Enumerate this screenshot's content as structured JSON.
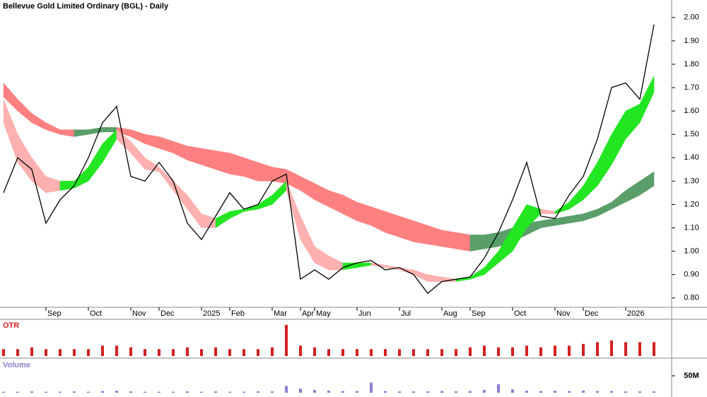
{
  "chart_data": [
    {
      "type": "line",
      "title": "Bellevue Gold Limited Ordinary (BGL) - Daily",
      "categories": [
        null,
        null,
        null,
        "Sep",
        null,
        null,
        "Oct",
        null,
        null,
        "Nov",
        null,
        "Dec",
        null,
        null,
        "2025",
        null,
        "Feb",
        null,
        null,
        "Mar",
        null,
        "Apr",
        "May",
        null,
        null,
        "Jun",
        null,
        null,
        "Jul",
        null,
        null,
        "Aug",
        null,
        "Sep",
        null,
        null,
        "Oct",
        null,
        null,
        "Nov",
        null,
        "Dec",
        null,
        null,
        "2026",
        null,
        null
      ],
      "series": [
        {
          "color": "#000000",
          "values": [
            1.25,
            1.4,
            1.35,
            1.12,
            1.22,
            1.28,
            1.4,
            1.55,
            1.62,
            1.32,
            1.3,
            1.38,
            1.3,
            1.12,
            1.05,
            1.15,
            1.25,
            1.18,
            1.2,
            1.3,
            1.33,
            0.88,
            0.92,
            0.88,
            0.93,
            0.95,
            0.96,
            0.92,
            0.93,
            0.9,
            0.82,
            0.87,
            0.88,
            0.89,
            0.97,
            1.08,
            1.22,
            1.38,
            1.15,
            1.14,
            1.24,
            1.32,
            1.48,
            1.7,
            1.72,
            1.65,
            1.97
          ]
        }
      ],
      "ribbons": [
        {
          "up_color": "#5a9e6a",
          "down_color": "#ff8080",
          "upper": [
            1.72,
            1.65,
            1.59,
            1.55,
            1.52,
            1.52,
            1.52,
            1.53,
            1.53,
            1.52,
            1.5,
            1.49,
            1.47,
            1.45,
            1.44,
            1.43,
            1.42,
            1.4,
            1.38,
            1.36,
            1.35,
            1.32,
            1.29,
            1.26,
            1.24,
            1.21,
            1.19,
            1.17,
            1.15,
            1.13,
            1.11,
            1.09,
            1.08,
            1.07,
            1.07,
            1.08,
            1.1,
            1.12,
            1.13,
            1.14,
            1.15,
            1.16,
            1.18,
            1.21,
            1.26,
            1.3,
            1.34
          ],
          "lower": [
            1.66,
            1.6,
            1.55,
            1.52,
            1.5,
            1.49,
            1.5,
            1.51,
            1.51,
            1.49,
            1.46,
            1.44,
            1.42,
            1.39,
            1.37,
            1.35,
            1.33,
            1.32,
            1.3,
            1.3,
            1.29,
            1.26,
            1.22,
            1.19,
            1.16,
            1.13,
            1.11,
            1.08,
            1.06,
            1.04,
            1.03,
            1.02,
            1.01,
            1.0,
            1.01,
            1.02,
            1.04,
            1.07,
            1.1,
            1.11,
            1.12,
            1.13,
            1.15,
            1.18,
            1.21,
            1.24,
            1.28
          ]
        },
        {
          "up_color": "#22e622",
          "down_color": "#ffb0b0",
          "upper": [
            1.65,
            1.5,
            1.4,
            1.32,
            1.3,
            1.3,
            1.36,
            1.46,
            1.52,
            1.47,
            1.4,
            1.36,
            1.3,
            1.24,
            1.16,
            1.14,
            1.17,
            1.18,
            1.2,
            1.24,
            1.3,
            1.15,
            1.02,
            0.98,
            0.95,
            0.95,
            0.95,
            0.94,
            0.93,
            0.92,
            0.9,
            0.89,
            0.88,
            0.89,
            0.93,
            1.0,
            1.1,
            1.2,
            1.18,
            1.17,
            1.21,
            1.28,
            1.38,
            1.5,
            1.6,
            1.63,
            1.75
          ],
          "lower": [
            1.55,
            1.38,
            1.3,
            1.25,
            1.26,
            1.27,
            1.3,
            1.38,
            1.48,
            1.42,
            1.35,
            1.34,
            1.26,
            1.18,
            1.1,
            1.1,
            1.14,
            1.17,
            1.18,
            1.2,
            1.26,
            1.05,
            0.95,
            0.92,
            0.92,
            0.93,
            0.94,
            0.93,
            0.92,
            0.9,
            0.87,
            0.87,
            0.87,
            0.88,
            0.9,
            0.95,
            1.0,
            1.1,
            1.16,
            1.16,
            1.18,
            1.22,
            1.28,
            1.37,
            1.48,
            1.55,
            1.68
          ]
        }
      ],
      "ylim": [
        0.76,
        2.075
      ],
      "yticks": [
        {
          "value": 0.8,
          "label": "0.80"
        },
        {
          "value": 0.9,
          "label": "0.90"
        },
        {
          "value": 1.0,
          "label": "1.00"
        },
        {
          "value": 1.1,
          "label": "1.10"
        },
        {
          "value": 1.2,
          "label": "1.20"
        },
        {
          "value": 1.3,
          "label": "1.30"
        },
        {
          "value": 1.4,
          "label": "1.40"
        },
        {
          "value": 1.5,
          "label": "1.50"
        },
        {
          "value": 1.6,
          "label": "1.60"
        },
        {
          "value": 1.7,
          "label": "1.70"
        },
        {
          "value": 1.8,
          "label": "1.80"
        },
        {
          "value": 1.9,
          "label": "1.90"
        },
        {
          "value": 2.0,
          "label": "2.00"
        }
      ]
    },
    {
      "type": "bar",
      "title": "OTR",
      "color": "#d42020",
      "values": [
        2,
        2,
        2.5,
        2,
        2,
        2,
        2,
        3,
        3,
        2.5,
        2,
        2,
        2,
        2.5,
        2,
        2.5,
        2,
        2,
        2,
        2.5,
        9,
        3,
        2.5,
        2,
        2,
        2,
        2,
        2,
        2,
        2,
        2,
        2,
        2,
        2.5,
        3,
        2.5,
        2.5,
        3,
        2.5,
        3,
        3,
        3.5,
        4,
        4.5,
        4,
        4,
        4
      ],
      "ylim": [
        0,
        10
      ]
    },
    {
      "type": "bar",
      "title": "Volume",
      "color": "#8a7fd0",
      "values": [
        3,
        3,
        4,
        3,
        3,
        4,
        3,
        5,
        6,
        4,
        3,
        3,
        3,
        4,
        3,
        4,
        3,
        3,
        4,
        4,
        20,
        12,
        8,
        6,
        5,
        5,
        30,
        5,
        4,
        4,
        4,
        5,
        4,
        5,
        8,
        25,
        10,
        6,
        5,
        6,
        5,
        6,
        5,
        5,
        4,
        4,
        4
      ],
      "ylim": [
        0,
        100
      ],
      "yticks": [
        {
          "value": 50,
          "label": "50M"
        }
      ]
    }
  ]
}
